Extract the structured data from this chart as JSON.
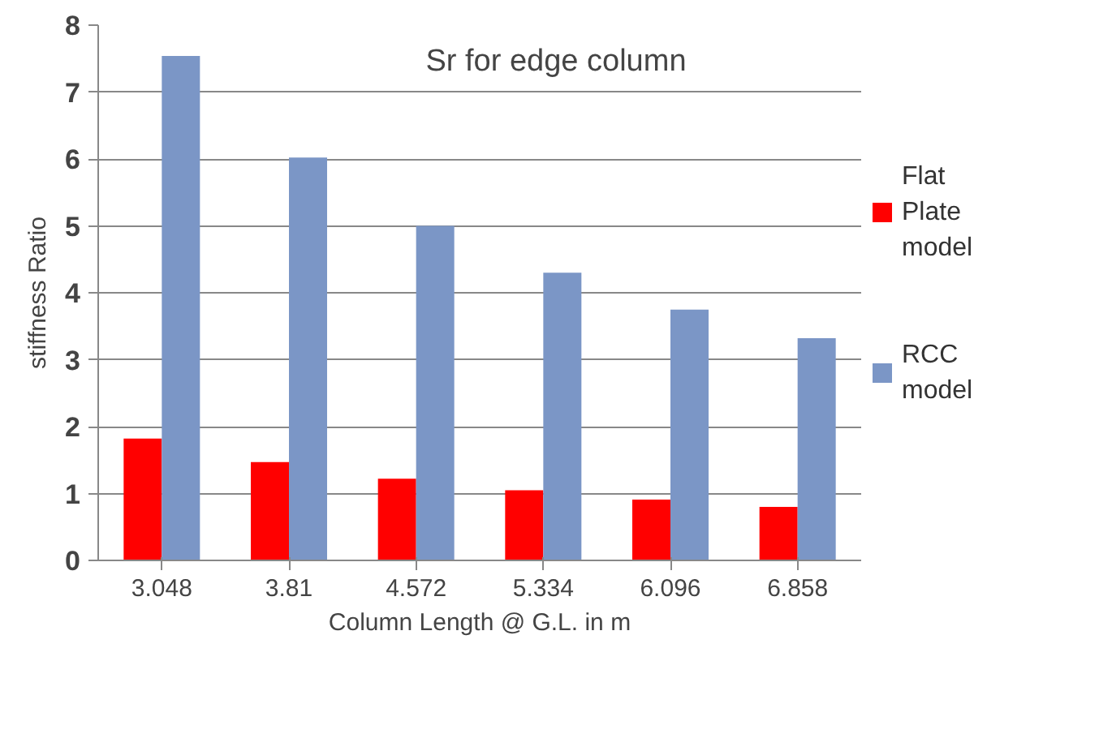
{
  "chart_data": {
    "type": "bar",
    "title": "Sr for edge column",
    "xlabel": "Column Length @ G.L. in m",
    "ylabel": "stiffness Ratio",
    "categories": [
      "3.048",
      "3.81",
      "4.572",
      "5.334",
      "6.096",
      "6.858"
    ],
    "series": [
      {
        "name": "Flat Plate model",
        "color": "#ff0000",
        "values": [
          1.82,
          1.47,
          1.22,
          1.05,
          0.91,
          0.8
        ]
      },
      {
        "name": "RCC model",
        "color": "#7b96c6",
        "values": [
          7.54,
          6.02,
          5.0,
          4.3,
          3.75,
          3.32
        ]
      }
    ],
    "ylim": [
      0,
      8
    ],
    "yticks": [
      0,
      1,
      2,
      3,
      4,
      5,
      6,
      7,
      8
    ],
    "grid": "y",
    "legend": "right"
  }
}
